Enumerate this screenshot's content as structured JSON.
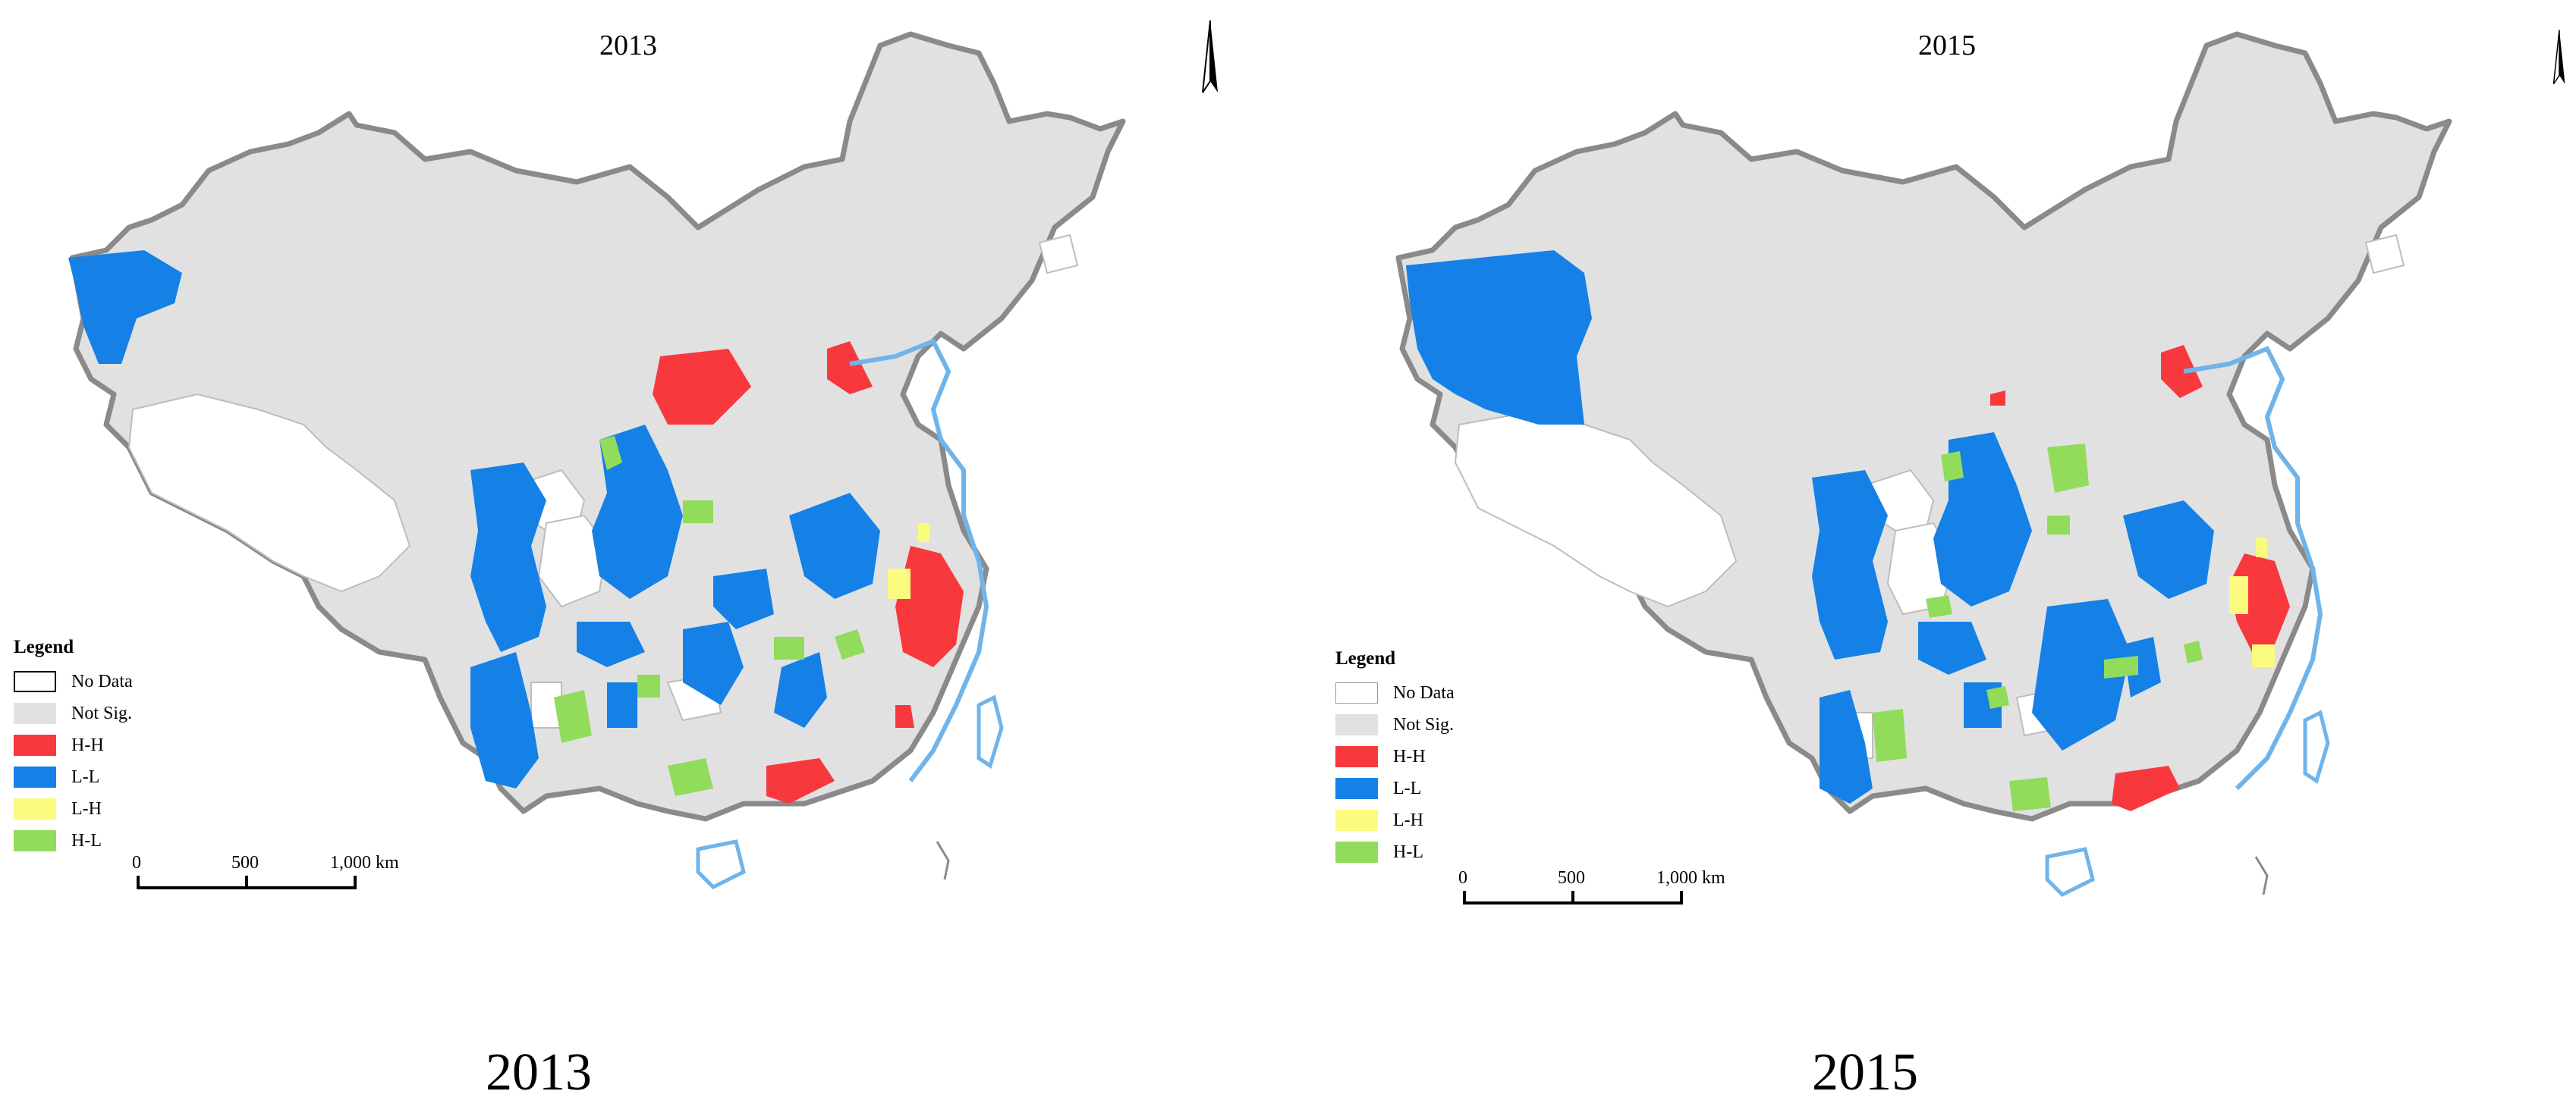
{
  "colors": {
    "no_data": "#ffffff",
    "not_sig": "#e1e1e1",
    "hh": "#f7383d",
    "ll": "#1581e6",
    "lh": "#fbfb80",
    "hl": "#91dc5a",
    "coast": "#6fb4ea",
    "border": "#8a8a8a"
  },
  "icons": {
    "north_arrow": "north-arrow-icon"
  },
  "maps": [
    {
      "title": "2013",
      "caption": "2013",
      "legend": {
        "title": "Legend",
        "items": [
          {
            "label": "No Data",
            "color": "#ffffff"
          },
          {
            "label": "Not Sig.",
            "color": "#e1e1e1"
          },
          {
            "label": "H-H",
            "color": "#f7383d"
          },
          {
            "label": "L-L",
            "color": "#1581e6"
          },
          {
            "label": "L-H",
            "color": "#fbfb80"
          },
          {
            "label": "H-L",
            "color": "#91dc5a"
          }
        ]
      },
      "scale": {
        "labels": [
          "0",
          "500",
          "1,000 km"
        ]
      }
    },
    {
      "title": "2015",
      "caption": "2015",
      "legend": {
        "title": "Legend",
        "items": [
          {
            "label": "No Data",
            "color": "#ffffff"
          },
          {
            "label": "Not Sig.",
            "color": "#e1e1e1"
          },
          {
            "label": "H-H",
            "color": "#f7383d"
          },
          {
            "label": "L-L",
            "color": "#1581e6"
          },
          {
            "label": "L-H",
            "color": "#fbfb80"
          },
          {
            "label": "H-L",
            "color": "#91dc5a"
          }
        ]
      },
      "scale": {
        "labels": [
          "0",
          "500",
          "1,000 km"
        ]
      }
    }
  ]
}
